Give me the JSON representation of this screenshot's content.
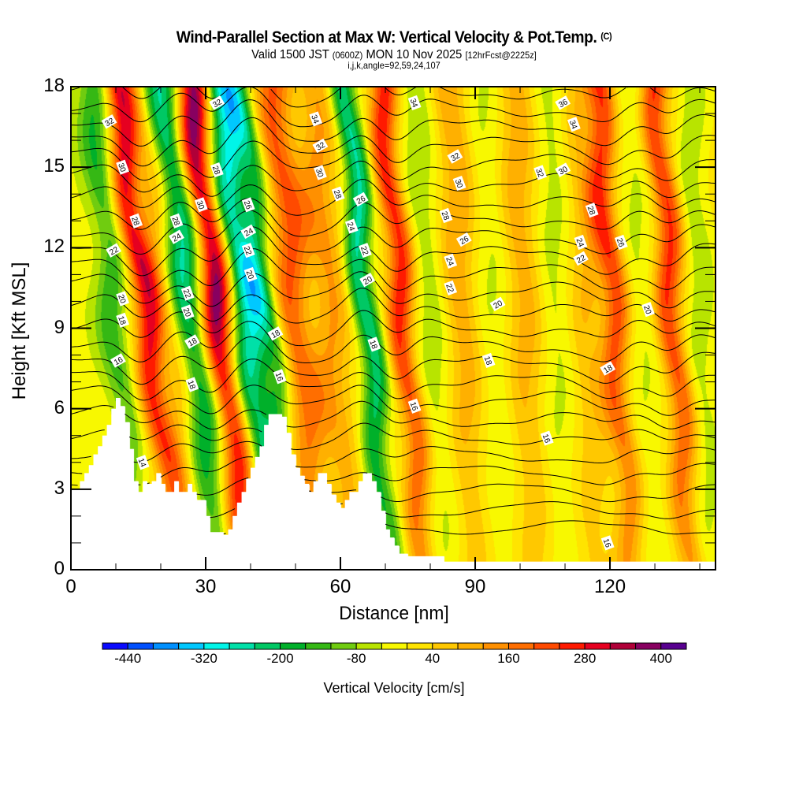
{
  "title": {
    "main": "Wind-Parallel Section at Max W: Vertical Velocity & Pot.Temp.",
    "copyright": "(C)",
    "valid_prefix": "Valid 1500 JST",
    "valid_utc": "(0600Z)",
    "valid_date": "MON 10 Nov 2025",
    "forecast": "[12hrFcst@2225z]",
    "indices": "i,j,k,angle=92,59,24,107"
  },
  "chart_data": {
    "type": "heatmap",
    "title": "Wind-Parallel Section at Max W: Vertical Velocity & Pot.Temp.",
    "xlabel": "Distance [nm]",
    "ylabel": "Height [Kft MSL]",
    "xlim": [
      0,
      143.5
    ],
    "ylim": [
      0,
      18
    ],
    "x_ticks": [
      0,
      30,
      60,
      90,
      120
    ],
    "x_minor_step": 10,
    "y_ticks": [
      0,
      3,
      6,
      9,
      12,
      15,
      18
    ],
    "y_minor_step": 1,
    "colorbar": {
      "label": "Vertical Velocity [cm/s]",
      "levels_min": -480,
      "level_step": 40,
      "tick_labels": [
        "-440",
        "-320",
        "-200",
        "-80",
        "40",
        "160",
        "280",
        "400"
      ],
      "tick_values": [
        -440,
        -320,
        -200,
        -80,
        40,
        160,
        280,
        400
      ],
      "colors": [
        "#0a0aff",
        "#0050ff",
        "#0090ff",
        "#00c8ff",
        "#00f5e8",
        "#00e0a8",
        "#00c864",
        "#00b02a",
        "#35b814",
        "#70cc10",
        "#b8e400",
        "#f8f800",
        "#ffe400",
        "#ffc800",
        "#ffb000",
        "#ff9000",
        "#ff6e00",
        "#ff4a00",
        "#ff1a00",
        "#e60020",
        "#b00038",
        "#880060",
        "#580090"
      ]
    },
    "vertical_velocity_bands": [
      {
        "x": 2,
        "tilt": 0.3,
        "width": 7,
        "value": -40
      },
      {
        "x": 10,
        "tilt": 0.6,
        "width": 3.5,
        "value": -150
      },
      {
        "x": 17,
        "tilt": 0.9,
        "width": 3.2,
        "value": 300
      },
      {
        "x": 22,
        "tilt": 0.9,
        "width": 3,
        "value": 80
      },
      {
        "x": 27,
        "tilt": 0.8,
        "width": 4,
        "value": -260
      },
      {
        "x": 33,
        "tilt": 0.8,
        "width": 3.5,
        "value": 400
      },
      {
        "x": 39,
        "tilt": 0.8,
        "width": 4,
        "value": -300
      },
      {
        "x": 44,
        "tilt": 0.8,
        "width": 3,
        "value": -180
      },
      {
        "x": 50,
        "tilt": 0.6,
        "width": 4,
        "value": 200
      },
      {
        "x": 58,
        "tilt": 0.5,
        "width": 4,
        "value": 120
      },
      {
        "x": 66,
        "tilt": 0.6,
        "width": 3,
        "value": -260
      },
      {
        "x": 74,
        "tilt": 0.6,
        "width": 3,
        "value": 260
      },
      {
        "x": 80,
        "tilt": 0.5,
        "width": 4,
        "value": -90
      },
      {
        "x": 87,
        "tilt": 0.3,
        "width": 4,
        "value": 110
      },
      {
        "x": 94,
        "tilt": 0.3,
        "width": 4,
        "value": -60
      },
      {
        "x": 101,
        "tilt": 0.3,
        "width": 4,
        "value": 100
      },
      {
        "x": 108,
        "tilt": 0.2,
        "width": 4,
        "value": -70
      },
      {
        "x": 115,
        "tilt": 0.2,
        "width": 4,
        "value": 80
      },
      {
        "x": 121,
        "tilt": 0.5,
        "width": 3,
        "value": 220
      },
      {
        "x": 127,
        "tilt": 0.3,
        "width": 4,
        "value": -60
      },
      {
        "x": 134,
        "tilt": 0.5,
        "width": 3,
        "value": 240
      },
      {
        "x": 140,
        "tilt": 0.3,
        "width": 3,
        "value": -90
      }
    ],
    "terrain_kft": [
      [
        0,
        3.0
      ],
      [
        2,
        3.3
      ],
      [
        3,
        3.6
      ],
      [
        4,
        3.9
      ],
      [
        5,
        4.3
      ],
      [
        6,
        4.6
      ],
      [
        7,
        5.0
      ],
      [
        8,
        5.4
      ],
      [
        9,
        6.0
      ],
      [
        10,
        6.4
      ],
      [
        11,
        6.1
      ],
      [
        12,
        5.5
      ],
      [
        13,
        4.5
      ],
      [
        14,
        3.3
      ],
      [
        15,
        2.9
      ],
      [
        16,
        3.3
      ],
      [
        17,
        3.2
      ],
      [
        18,
        3.3
      ],
      [
        19,
        3.6
      ],
      [
        20,
        3.2
      ],
      [
        21,
        2.9
      ],
      [
        23,
        3.3
      ],
      [
        24,
        2.9
      ],
      [
        26,
        3.2
      ],
      [
        27,
        2.9
      ],
      [
        28,
        2.6
      ],
      [
        30,
        2.0
      ],
      [
        31,
        1.4
      ],
      [
        34,
        1.3
      ],
      [
        35,
        1.5
      ],
      [
        36,
        2.0
      ],
      [
        37,
        2.5
      ],
      [
        38,
        2.9
      ],
      [
        39,
        3.4
      ],
      [
        40,
        3.8
      ],
      [
        41,
        4.2
      ],
      [
        42,
        4.6
      ],
      [
        43,
        5.4
      ],
      [
        44,
        5.8
      ],
      [
        47,
        5.7
      ],
      [
        48,
        5.1
      ],
      [
        49,
        4.3
      ],
      [
        50,
        3.8
      ],
      [
        51,
        3.5
      ],
      [
        52,
        3.2
      ],
      [
        53,
        2.9
      ],
      [
        54,
        3.3
      ],
      [
        55,
        3.6
      ],
      [
        57,
        3.2
      ],
      [
        58,
        2.8
      ],
      [
        59,
        2.5
      ],
      [
        60,
        2.3
      ],
      [
        61,
        2.6
      ],
      [
        62,
        2.9
      ],
      [
        64,
        3.3
      ],
      [
        65,
        3.6
      ],
      [
        67,
        3.3
      ],
      [
        68,
        2.9
      ],
      [
        69,
        2.2
      ],
      [
        70,
        1.5
      ],
      [
        71,
        1.2
      ],
      [
        72,
        0.9
      ],
      [
        73,
        0.6
      ],
      [
        75,
        0.5
      ],
      [
        83,
        0.3
      ],
      [
        143.5,
        0.3
      ]
    ],
    "theta_contours": {
      "units": "C",
      "interval": 1,
      "labeled_levels": [
        14,
        16,
        18,
        20,
        22,
        24,
        26,
        28,
        30,
        32,
        34,
        36
      ],
      "labels": [
        {
          "text": "32",
          "x": 8.5,
          "y": 16.7
        },
        {
          "text": "30",
          "x": 11.5,
          "y": 15.0
        },
        {
          "text": "28",
          "x": 14.5,
          "y": 13.0
        },
        {
          "text": "22",
          "x": 9.5,
          "y": 11.9
        },
        {
          "text": "20",
          "x": 11.5,
          "y": 10.1
        },
        {
          "text": "18",
          "x": 11.5,
          "y": 9.3
        },
        {
          "text": "16",
          "x": 10.5,
          "y": 7.8
        },
        {
          "text": "14",
          "x": 16.0,
          "y": 4.0
        },
        {
          "text": "28",
          "x": 23.5,
          "y": 13.0
        },
        {
          "text": "24",
          "x": 23.5,
          "y": 12.4
        },
        {
          "text": "22",
          "x": 26.0,
          "y": 10.3
        },
        {
          "text": "20",
          "x": 26.0,
          "y": 9.6
        },
        {
          "text": "18",
          "x": 27.0,
          "y": 8.5
        },
        {
          "text": "18",
          "x": 27.0,
          "y": 6.9
        },
        {
          "text": "30",
          "x": 29.0,
          "y": 13.6
        },
        {
          "text": "32",
          "x": 32.5,
          "y": 17.4
        },
        {
          "text": "28",
          "x": 32.5,
          "y": 14.9
        },
        {
          "text": "26",
          "x": 39.5,
          "y": 13.6
        },
        {
          "text": "24",
          "x": 39.5,
          "y": 12.6
        },
        {
          "text": "22",
          "x": 39.5,
          "y": 11.9
        },
        {
          "text": "20",
          "x": 40.0,
          "y": 11.0
        },
        {
          "text": "18",
          "x": 45.5,
          "y": 8.8
        },
        {
          "text": "16",
          "x": 46.5,
          "y": 7.2
        },
        {
          "text": "34",
          "x": 54.5,
          "y": 16.8
        },
        {
          "text": "32",
          "x": 55.5,
          "y": 15.8
        },
        {
          "text": "30",
          "x": 55.5,
          "y": 14.8
        },
        {
          "text": "28",
          "x": 59.5,
          "y": 14.0
        },
        {
          "text": "26",
          "x": 64.5,
          "y": 13.8
        },
        {
          "text": "24",
          "x": 62.5,
          "y": 12.8
        },
        {
          "text": "22",
          "x": 65.5,
          "y": 11.9
        },
        {
          "text": "20",
          "x": 66.0,
          "y": 10.8
        },
        {
          "text": "18",
          "x": 67.5,
          "y": 8.4
        },
        {
          "text": "34",
          "x": 76.5,
          "y": 17.4
        },
        {
          "text": "32",
          "x": 85.5,
          "y": 15.4
        },
        {
          "text": "30",
          "x": 86.5,
          "y": 14.4
        },
        {
          "text": "28",
          "x": 83.5,
          "y": 13.2
        },
        {
          "text": "26",
          "x": 87.5,
          "y": 12.3
        },
        {
          "text": "24",
          "x": 84.5,
          "y": 11.5
        },
        {
          "text": "22",
          "x": 84.5,
          "y": 10.5
        },
        {
          "text": "20",
          "x": 95.0,
          "y": 9.9
        },
        {
          "text": "18",
          "x": 93.0,
          "y": 7.8
        },
        {
          "text": "16",
          "x": 76.5,
          "y": 6.1
        },
        {
          "text": "36",
          "x": 109.5,
          "y": 17.4
        },
        {
          "text": "34",
          "x": 112.0,
          "y": 16.6
        },
        {
          "text": "32",
          "x": 104.5,
          "y": 14.8
        },
        {
          "text": "30",
          "x": 109.5,
          "y": 14.9
        },
        {
          "text": "28",
          "x": 116.0,
          "y": 13.4
        },
        {
          "text": "24",
          "x": 113.5,
          "y": 12.2
        },
        {
          "text": "22",
          "x": 113.5,
          "y": 11.6
        },
        {
          "text": "26",
          "x": 122.5,
          "y": 12.2
        },
        {
          "text": "20",
          "x": 128.5,
          "y": 9.7
        },
        {
          "text": "18",
          "x": 119.5,
          "y": 7.5
        },
        {
          "text": "16",
          "x": 106.0,
          "y": 4.9
        },
        {
          "text": "16",
          "x": 119.5,
          "y": 1.0
        }
      ]
    }
  }
}
